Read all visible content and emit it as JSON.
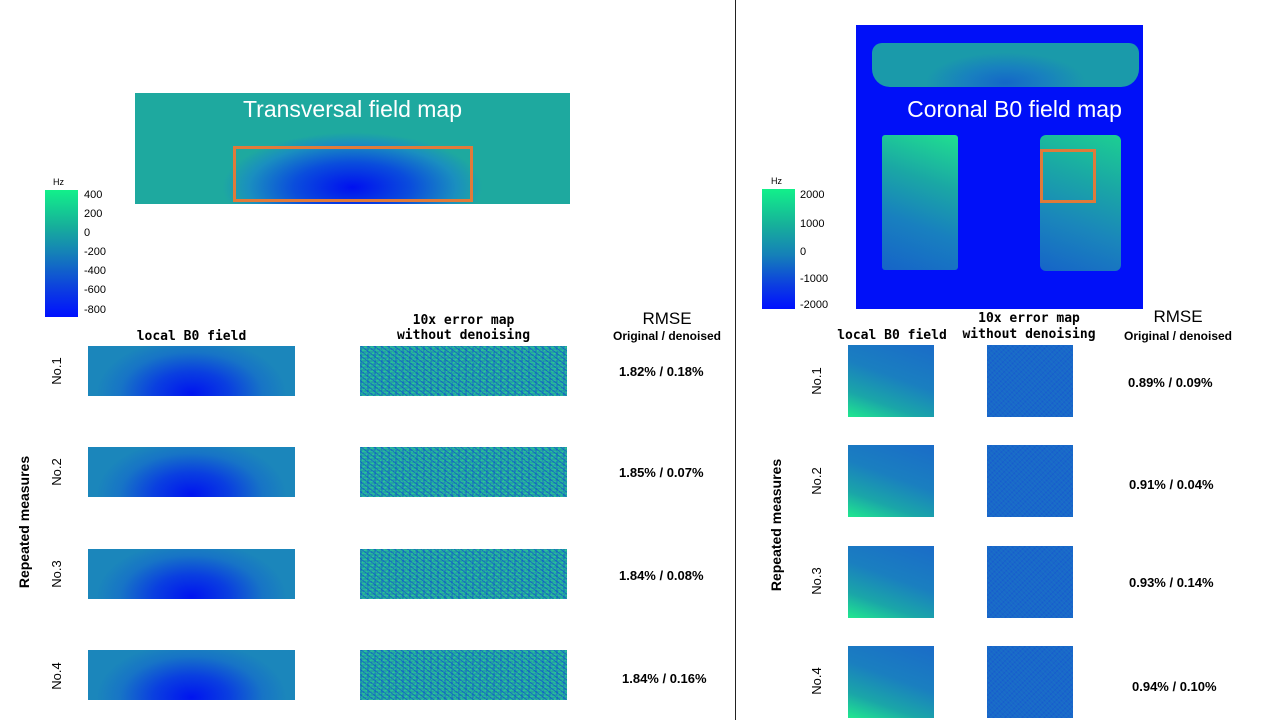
{
  "left": {
    "map_title": "Transversal field map",
    "colorbar": {
      "unit": "Hz",
      "ticks": [
        "400",
        "200",
        "0",
        "-200",
        "-400",
        "-600",
        "-800"
      ]
    },
    "col_local": "local B0 field",
    "col_error_1": "10x error map",
    "col_error_2": "without denoising",
    "rmse_title": "RMSE",
    "rmse_sub": "Original / denoised",
    "rows_axis": "Repeated measures",
    "rows": [
      {
        "label": "No.1",
        "rmse": "1.82% / 0.18%"
      },
      {
        "label": "No.2",
        "rmse": "1.85% / 0.07%"
      },
      {
        "label": "No.3",
        "rmse": "1.84% / 0.08%"
      },
      {
        "label": "No.4",
        "rmse": "1.84% / 0.16%"
      }
    ]
  },
  "right": {
    "map_title": "Coronal B0 field map",
    "colorbar": {
      "unit": "Hz",
      "ticks": [
        "2000",
        "1000",
        "0",
        "-1000",
        "-2000"
      ]
    },
    "col_local": "local B0 field",
    "col_error_1": "10x error map",
    "col_error_2": "without denoising",
    "rmse_title": "RMSE",
    "rmse_sub": "Original / denoised",
    "rows_axis": "Repeated measures",
    "rows": [
      {
        "label": "No.1",
        "rmse": "0.89% / 0.09%"
      },
      {
        "label": "No.2",
        "rmse": "0.91% / 0.04%"
      },
      {
        "label": "No.3",
        "rmse": "0.93% / 0.14%"
      },
      {
        "label": "No.4",
        "rmse": "0.94% / 0.10%"
      }
    ]
  },
  "colors": {
    "roi_box": "#e07a3a",
    "field_blue": "#0010f8",
    "field_teal": "#1ea99f",
    "field_green": "#12f08a"
  }
}
